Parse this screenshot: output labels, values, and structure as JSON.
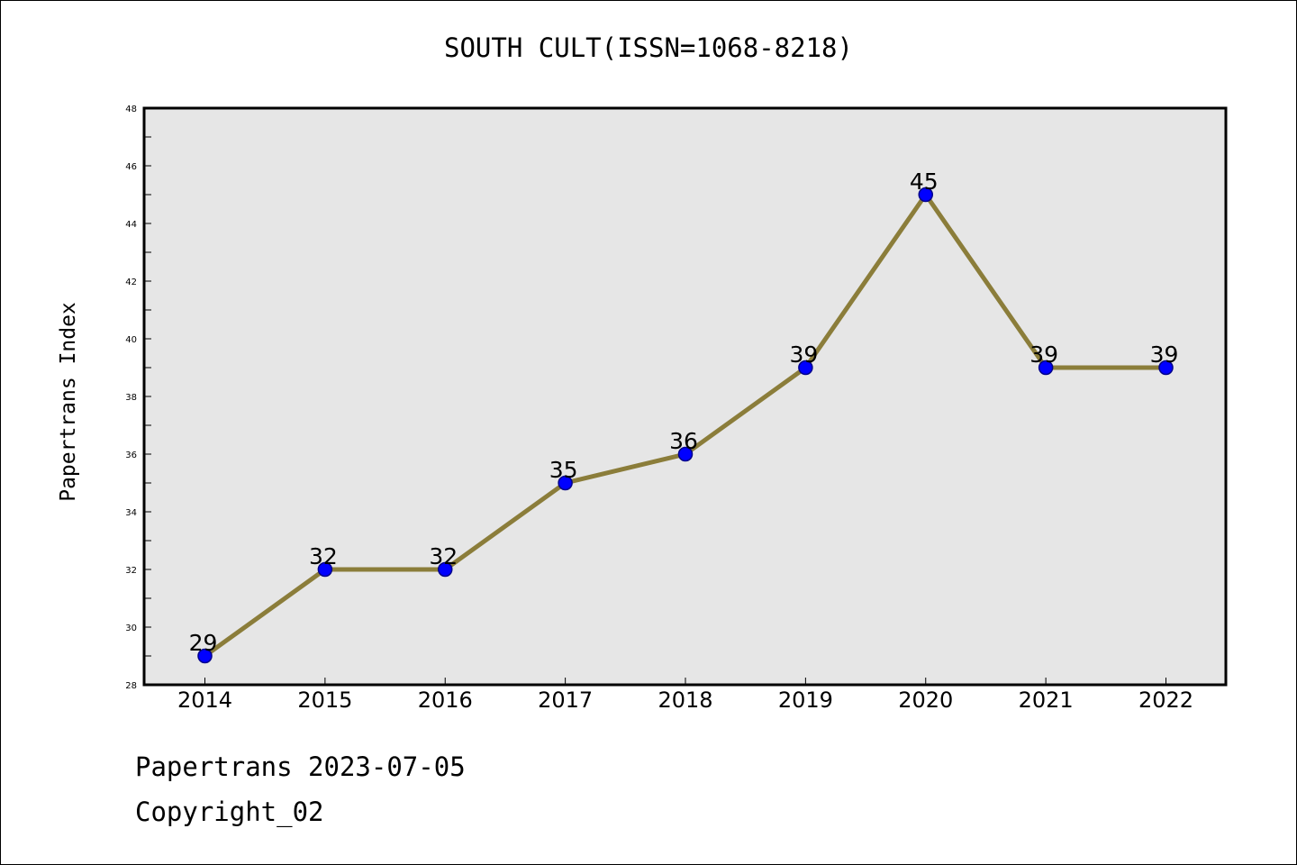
{
  "chart_data": {
    "type": "line",
    "title": "SOUTH CULT(ISSN=1068-8218)",
    "xlabel": "",
    "ylabel": "Papertrans Index",
    "categories": [
      "2014",
      "2015",
      "2016",
      "2017",
      "2018",
      "2019",
      "2020",
      "2021",
      "2022"
    ],
    "series": [
      {
        "values": [
          29,
          32,
          32,
          35,
          36,
          39,
          45,
          39,
          39
        ]
      }
    ],
    "ylim": [
      28,
      48
    ],
    "yticks": [
      28,
      30,
      32,
      34,
      36,
      38,
      40,
      42,
      44,
      46,
      48
    ],
    "grid": false,
    "line_color": "#8b7d3a",
    "marker_color": "#0000ff",
    "plot_background": "#e6e6e6"
  },
  "footer": {
    "date_line": "Papertrans 2023-07-05",
    "copyright_line": "Copyright_02"
  }
}
